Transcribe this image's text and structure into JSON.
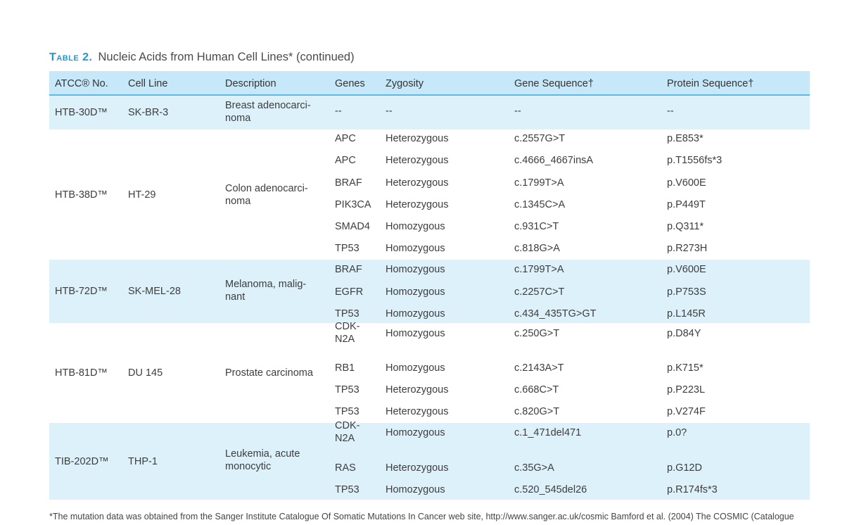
{
  "caption": {
    "label": "Table 2.",
    "title": "Nucleic Acids from Human Cell Lines* (continued)"
  },
  "headers": [
    "ATCC® No.",
    "Cell Line",
    "Description",
    "Genes",
    "Zygosity",
    "Gene Sequence†",
    "Protein Sequence†"
  ],
  "groups": [
    {
      "atcc": "HTB-30D™",
      "cell_line": "SK-BR-3",
      "description": "Breast adenocarci-\nnoma",
      "rows": [
        {
          "gene": "--",
          "zygosity": "--",
          "gene_seq": "--",
          "protein_seq": "--"
        }
      ]
    },
    {
      "atcc": "HTB-38D™",
      "cell_line": "HT-29",
      "description": "Colon adenocarci-\nnoma",
      "rows": [
        {
          "gene": "APC",
          "zygosity": "Heterozygous",
          "gene_seq": "c.2557G>T",
          "protein_seq": "p.E853*"
        },
        {
          "gene": "APC",
          "zygosity": "Heterozygous",
          "gene_seq": "c.4666_4667insA",
          "protein_seq": "p.T1556fs*3"
        },
        {
          "gene": "BRAF",
          "zygosity": "Heterozygous",
          "gene_seq": "c.1799T>A",
          "protein_seq": "p.V600E"
        },
        {
          "gene": "PIK3CA",
          "zygosity": "Heterozygous",
          "gene_seq": "c.1345C>A",
          "protein_seq": "p.P449T"
        },
        {
          "gene": "SMAD4",
          "zygosity": "Homozygous",
          "gene_seq": "c.931C>T",
          "protein_seq": "p.Q311*"
        },
        {
          "gene": "TP53",
          "zygosity": "Homozygous",
          "gene_seq": "c.818G>A",
          "protein_seq": "p.R273H"
        }
      ]
    },
    {
      "atcc": "HTB-72D™",
      "cell_line": "SK-MEL-28",
      "description": "Melanoma, malig-\nnant",
      "rows": [
        {
          "gene": "BRAF",
          "zygosity": "Homozygous",
          "gene_seq": "c.1799T>A",
          "protein_seq": "p.V600E"
        },
        {
          "gene": "EGFR",
          "zygosity": "Homozygous",
          "gene_seq": "c.2257C>T",
          "protein_seq": "p.P753S"
        },
        {
          "gene": "TP53",
          "zygosity": "Homozygous",
          "gene_seq": "c.434_435TG>GT",
          "protein_seq": "p.L145R"
        }
      ]
    },
    {
      "atcc": "HTB-81D™",
      "cell_line": "DU 145",
      "description": "Prostate carcinoma",
      "rows": [
        {
          "gene": "CDK-\nN2A",
          "zygosity": "Homozygous",
          "gene_seq": "c.250G>T",
          "protein_seq": "p.D84Y"
        },
        {
          "gene": "RB1",
          "zygosity": "Homozygous",
          "gene_seq": "c.2143A>T",
          "protein_seq": "p.K715*"
        },
        {
          "gene": "TP53",
          "zygosity": "Heterozygous",
          "gene_seq": "c.668C>T",
          "protein_seq": "p.P223L"
        },
        {
          "gene": "TP53",
          "zygosity": "Heterozygous",
          "gene_seq": "c.820G>T",
          "protein_seq": "p.V274F"
        }
      ]
    },
    {
      "atcc": "TIB-202D™",
      "cell_line": "THP-1",
      "description": "Leukemia, acute\nmonocytic",
      "rows": [
        {
          "gene": "CDK-\nN2A",
          "zygosity": "Homozygous",
          "gene_seq": "c.1_471del471",
          "protein_seq": "p.0?"
        },
        {
          "gene": "RAS",
          "zygosity": "Heterozygous",
          "gene_seq": "c.35G>A",
          "protein_seq": "p.G12D"
        },
        {
          "gene": "TP53",
          "zygosity": "Homozygous",
          "gene_seq": "c.520_545del26",
          "protein_seq": "p.R174fs*3"
        }
      ]
    }
  ],
  "footnote": "*The mutation data was obtained from the Sanger Institute Catalogue Of Somatic Mutations In Cancer web site, http://www.sanger.ac.uk/cosmic Bamford et al. (2004) The COSMIC (Catalogue"
}
